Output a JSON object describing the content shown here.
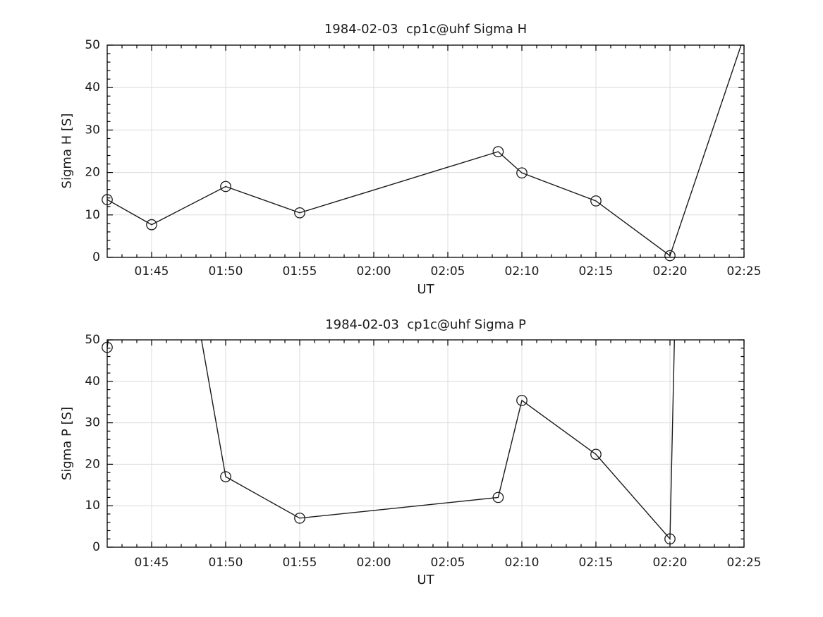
{
  "figure": {
    "background": "#ffffff",
    "axis_color": "#000000",
    "text_color": "#1a1a1a",
    "grid_color": "#dcdcdc",
    "line_color": "#1a1a1a",
    "marker": "hollow-circle"
  },
  "chart_data": [
    {
      "type": "line",
      "title": "1984-02-03  cp1c@uhf Sigma H",
      "xlabel": "UT",
      "ylabel": "Sigma H [S]",
      "ylim": [
        0,
        50
      ],
      "xlim_minutes": [
        102,
        145
      ],
      "grid": true,
      "legend": null,
      "x_minor_step_minutes": 1,
      "y_minor_step": 2,
      "x_ticks": [
        {
          "minute": 105,
          "label": "01:45"
        },
        {
          "minute": 110,
          "label": "01:50"
        },
        {
          "minute": 115,
          "label": "01:55"
        },
        {
          "minute": 120,
          "label": "02:00"
        },
        {
          "minute": 125,
          "label": "02:05"
        },
        {
          "minute": 130,
          "label": "02:10"
        },
        {
          "minute": 135,
          "label": "02:15"
        },
        {
          "minute": 140,
          "label": "02:20"
        },
        {
          "minute": 145,
          "label": "02:25"
        }
      ],
      "y_ticks": [
        {
          "value": 0,
          "label": "0"
        },
        {
          "value": 10,
          "label": "10"
        },
        {
          "value": 20,
          "label": "20"
        },
        {
          "value": 30,
          "label": "30"
        },
        {
          "value": 40,
          "label": "40"
        },
        {
          "value": 50,
          "label": "50"
        }
      ],
      "points": [
        {
          "time": "01:42",
          "minute": 102,
          "value": 13.6
        },
        {
          "time": "01:45",
          "minute": 105,
          "value": 7.7
        },
        {
          "time": "01:50",
          "minute": 110,
          "value": 16.7
        },
        {
          "time": "01:55",
          "minute": 115,
          "value": 10.5
        },
        {
          "time": "02:08.4",
          "minute": 128.4,
          "value": 24.9
        },
        {
          "time": "02:10",
          "minute": 130,
          "value": 19.9
        },
        {
          "time": "02:15",
          "minute": 135,
          "value": 13.3
        },
        {
          "time": "02:20",
          "minute": 140,
          "value": 0.4
        },
        {
          "time": "02:25",
          "minute": 145,
          "value": 52,
          "offscale": true
        }
      ],
      "note": "final point exceeds the y-range; its line segment is clipped at the top of the axes"
    },
    {
      "type": "line",
      "title": "1984-02-03  cp1c@uhf Sigma P",
      "xlabel": "UT",
      "ylabel": "Sigma P [S]",
      "ylim": [
        0,
        50
      ],
      "xlim_minutes": [
        102,
        145
      ],
      "grid": true,
      "legend": null,
      "x_minor_step_minutes": 1,
      "y_minor_step": 2,
      "x_ticks": [
        {
          "minute": 105,
          "label": "01:45"
        },
        {
          "minute": 110,
          "label": "01:50"
        },
        {
          "minute": 115,
          "label": "01:55"
        },
        {
          "minute": 120,
          "label": "02:00"
        },
        {
          "minute": 125,
          "label": "02:05"
        },
        {
          "minute": 130,
          "label": "02:10"
        },
        {
          "minute": 135,
          "label": "02:15"
        },
        {
          "minute": 140,
          "label": "02:20"
        },
        {
          "minute": 145,
          "label": "02:25"
        }
      ],
      "y_ticks": [
        {
          "value": 0,
          "label": "0"
        },
        {
          "value": 10,
          "label": "10"
        },
        {
          "value": 20,
          "label": "20"
        },
        {
          "value": 30,
          "label": "30"
        },
        {
          "value": 40,
          "label": "40"
        },
        {
          "value": 50,
          "label": "50"
        }
      ],
      "points": [
        {
          "time": "01:42",
          "minute": 102,
          "value": 48.2
        },
        {
          "time": "01:45",
          "minute": 105,
          "value": 118,
          "offscale": true
        },
        {
          "time": "01:50",
          "minute": 110,
          "value": 17.0
        },
        {
          "time": "01:55",
          "minute": 115,
          "value": 7.0
        },
        {
          "time": "02:08.4",
          "minute": 128.4,
          "value": 12.0
        },
        {
          "time": "02:10",
          "minute": 130,
          "value": 35.4
        },
        {
          "time": "02:15",
          "minute": 135,
          "value": 22.4
        },
        {
          "time": "02:20",
          "minute": 140,
          "value": 2.0
        },
        {
          "time": "02:25",
          "minute": 145,
          "value": 800,
          "offscale": true
        }
      ],
      "note": "points at 01:45 and 02:25 exceed the y-range; their line segments are clipped at the top of the axes"
    }
  ]
}
